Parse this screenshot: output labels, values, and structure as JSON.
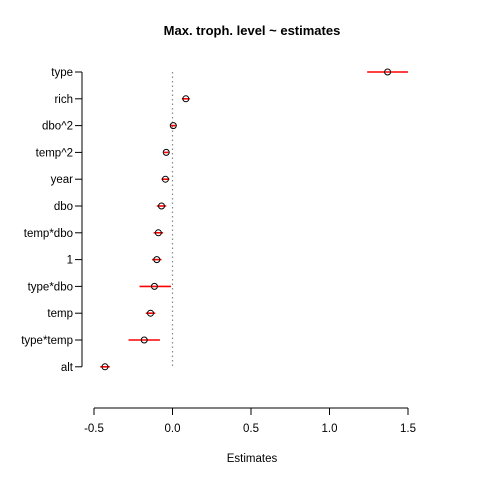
{
  "chart_data": {
    "type": "scatter",
    "subtype": "coefficient-plot-with-error-bars",
    "title": "Max. troph. level ~ estimates",
    "xlabel": "Estimates",
    "ylabel": "",
    "xlim": [
      -0.5,
      1.5
    ],
    "xticks": [
      -0.5,
      0.0,
      0.5,
      1.0,
      1.5
    ],
    "xtick_labels": [
      "-0.5",
      "0.0",
      "0.5",
      "1.0",
      "1.5"
    ],
    "reference_line": {
      "x": 0,
      "style": "dotted",
      "color": "#888888"
    },
    "point_color": "#000000",
    "interval_color": "#ff0000",
    "grid": false,
    "legend": "none",
    "categories": [
      "type",
      "rich",
      "dbo^2",
      "temp^2",
      "year",
      "dbo",
      "temp*dbo",
      "1",
      "type*dbo",
      "temp",
      "type*temp",
      "alt"
    ],
    "points": [
      {
        "label": "type",
        "estimate": 1.37,
        "lower": 1.24,
        "upper": 1.5
      },
      {
        "label": "rich",
        "estimate": 0.085,
        "lower": 0.06,
        "upper": 0.11
      },
      {
        "label": "dbo^2",
        "estimate": 0.005,
        "lower": -0.01,
        "upper": 0.02
      },
      {
        "label": "temp^2",
        "estimate": -0.04,
        "lower": -0.055,
        "upper": -0.025
      },
      {
        "label": "year",
        "estimate": -0.045,
        "lower": -0.07,
        "upper": -0.02
      },
      {
        "label": "dbo",
        "estimate": -0.07,
        "lower": -0.1,
        "upper": -0.04
      },
      {
        "label": "temp*dbo",
        "estimate": -0.09,
        "lower": -0.12,
        "upper": -0.06
      },
      {
        "label": "1",
        "estimate": -0.1,
        "lower": -0.13,
        "upper": -0.07
      },
      {
        "label": "type*dbo",
        "estimate": -0.115,
        "lower": -0.21,
        "upper": -0.01
      },
      {
        "label": "temp",
        "estimate": -0.14,
        "lower": -0.17,
        "upper": -0.11
      },
      {
        "label": "type*temp",
        "estimate": -0.18,
        "lower": -0.28,
        "upper": -0.08
      },
      {
        "label": "alt",
        "estimate": -0.43,
        "lower": -0.46,
        "upper": -0.4
      }
    ]
  }
}
